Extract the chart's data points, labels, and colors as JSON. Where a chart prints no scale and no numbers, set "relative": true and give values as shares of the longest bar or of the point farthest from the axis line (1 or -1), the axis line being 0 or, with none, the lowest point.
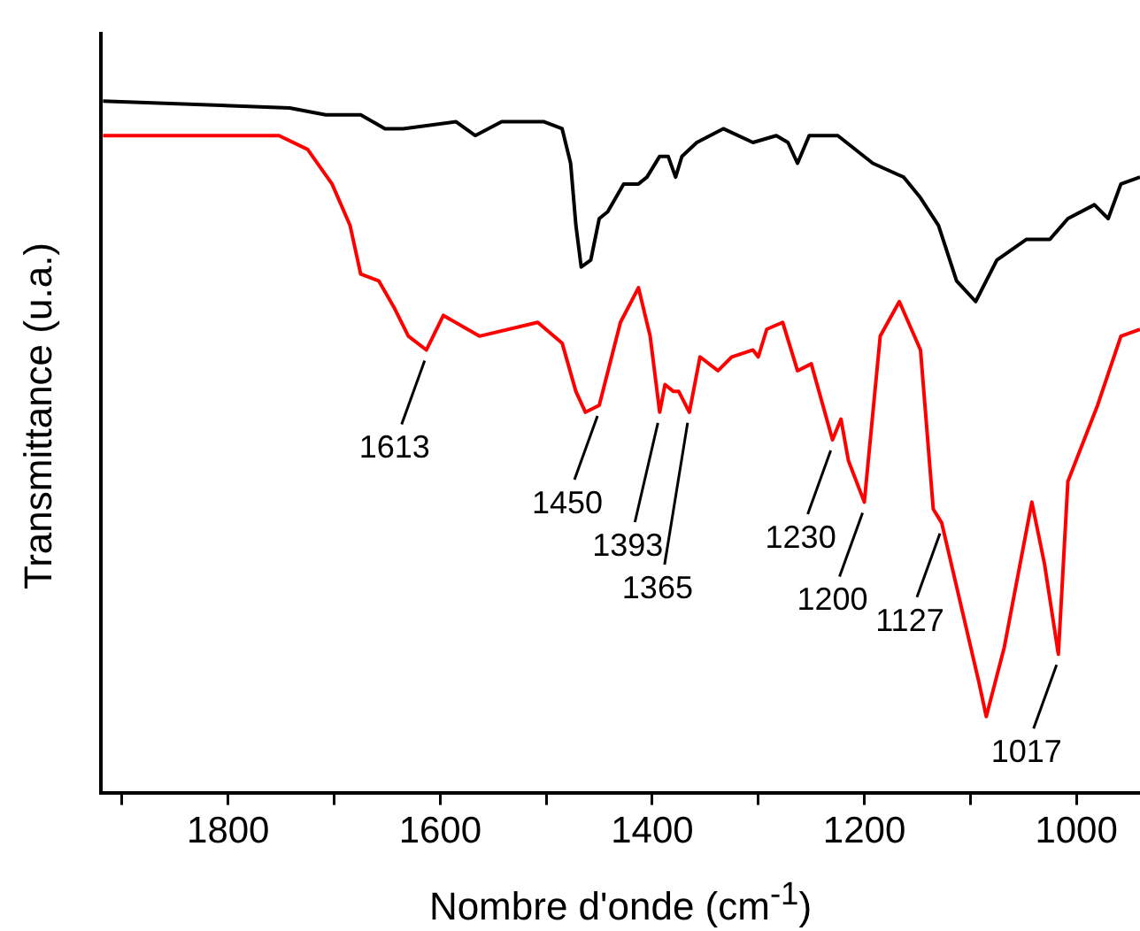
{
  "chart_data": {
    "type": "line",
    "relative": true,
    "xlabel": "Nombre d'onde (cm$^{-1}$)",
    "ylabel": "Transmittance (u.a.)",
    "xlim": [
      1920,
      940
    ],
    "xticks": [
      {
        "value": 1900,
        "label": null
      },
      1800,
      {
        "value": 1700,
        "label": null
      },
      1600,
      {
        "value": 1500,
        "label": null
      },
      1400,
      {
        "value": 1300,
        "label": null
      },
      1200,
      {
        "value": 1100,
        "label": null
      },
      1000
    ],
    "grid": false,
    "legend": false,
    "marker": "none",
    "line_style": "solid",
    "series": [
      {
        "color": "#000000",
        "x": [
          1918,
          1742,
          1708,
          1675,
          1652,
          1635,
          1585,
          1567,
          1542,
          1502,
          1485,
          1477,
          1472,
          1467,
          1458,
          1450,
          1442,
          1427,
          1413,
          1405,
          1393,
          1385,
          1378,
          1372,
          1358,
          1333,
          1305,
          1283,
          1272,
          1263,
          1252,
          1225,
          1192,
          1163,
          1147,
          1130,
          1113,
          1095,
          1075,
          1047,
          1025,
          1008,
          983,
          970,
          958,
          940
        ],
        "values": [
          1.0,
          0.99,
          0.98,
          0.98,
          0.96,
          0.96,
          0.97,
          0.95,
          0.97,
          0.97,
          0.96,
          0.91,
          0.82,
          0.76,
          0.77,
          0.83,
          0.84,
          0.88,
          0.88,
          0.89,
          0.92,
          0.92,
          0.89,
          0.92,
          0.94,
          0.96,
          0.94,
          0.95,
          0.94,
          0.91,
          0.95,
          0.95,
          0.91,
          0.89,
          0.86,
          0.82,
          0.74,
          0.71,
          0.77,
          0.8,
          0.8,
          0.83,
          0.85,
          0.83,
          0.88,
          0.89
        ]
      },
      {
        "color": "#ff0000",
        "x": [
          1918,
          1752,
          1725,
          1702,
          1685,
          1675,
          1658,
          1643,
          1630,
          1613,
          1597,
          1563,
          1508,
          1485,
          1472,
          1463,
          1450,
          1430,
          1413,
          1402,
          1393,
          1388,
          1380,
          1375,
          1365,
          1355,
          1338,
          1325,
          1305,
          1300,
          1292,
          1277,
          1263,
          1250,
          1230,
          1222,
          1215,
          1200,
          1185,
          1167,
          1147,
          1135,
          1127,
          1092,
          1085,
          1068,
          1042,
          1030,
          1017,
          1008,
          980,
          958,
          940
        ],
        "values": [
          0.95,
          0.95,
          0.93,
          0.88,
          0.82,
          0.75,
          0.74,
          0.7,
          0.66,
          0.64,
          0.69,
          0.66,
          0.68,
          0.65,
          0.58,
          0.55,
          0.56,
          0.68,
          0.73,
          0.66,
          0.55,
          0.59,
          0.58,
          0.58,
          0.55,
          0.63,
          0.61,
          0.63,
          0.64,
          0.63,
          0.67,
          0.68,
          0.61,
          0.62,
          0.51,
          0.54,
          0.48,
          0.42,
          0.66,
          0.71,
          0.64,
          0.41,
          0.39,
          0.16,
          0.11,
          0.21,
          0.42,
          0.33,
          0.2,
          0.45,
          0.56,
          0.66,
          0.67
        ]
      }
    ],
    "annotations": [
      {
        "text": "1613",
        "x": 1613,
        "y": 0.64
      },
      {
        "text": "1450",
        "x": 1450,
        "y": 0.56
      },
      {
        "text": "1393",
        "x": 1393,
        "y": 0.55
      },
      {
        "text": "1365",
        "x": 1365,
        "y": 0.55
      },
      {
        "text": "1230",
        "x": 1230,
        "y": 0.51
      },
      {
        "text": "1200",
        "x": 1200,
        "y": 0.42
      },
      {
        "text": "1127",
        "x": 1127,
        "y": 0.39
      },
      {
        "text": "1017",
        "x": 1017,
        "y": 0.2
      }
    ]
  }
}
